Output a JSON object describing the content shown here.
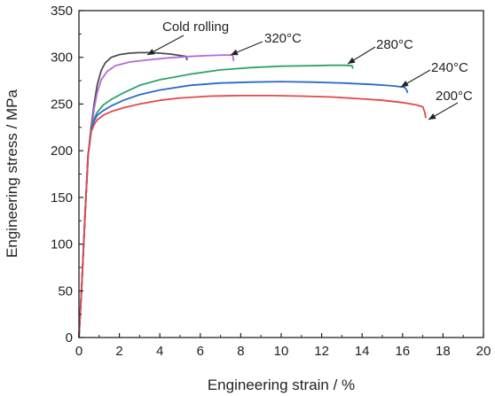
{
  "chart_data": {
    "type": "line",
    "title": "",
    "xlabel": "Engineering strain / %",
    "ylabel": "Engineering stress / MPa",
    "xlim": [
      0,
      20
    ],
    "ylim": [
      0,
      350
    ],
    "xticks": [
      "0",
      "2",
      "4",
      "6",
      "8",
      "10",
      "12",
      "14",
      "16",
      "18",
      "20"
    ],
    "yticks": [
      "0",
      "50",
      "100",
      "150",
      "200",
      "250",
      "300",
      "350"
    ],
    "grid": false,
    "legend": "none",
    "series": [
      {
        "name": "Cold rolling",
        "color": "#4d4d4d",
        "x": [
          0,
          0.15,
          0.3,
          0.45,
          0.6,
          0.75,
          0.9,
          1.1,
          1.3,
          1.6,
          2.0,
          2.5,
          3.0,
          3.5,
          4.0,
          4.5,
          5.0,
          5.3,
          5.35
        ],
        "y": [
          0,
          60,
          130,
          195,
          225,
          250,
          270,
          286,
          294,
          300,
          303,
          304.5,
          305,
          305,
          304.5,
          303.5,
          302,
          301,
          297
        ]
      },
      {
        "name": "320°C",
        "color": "#b36ad9",
        "x": [
          0,
          0.15,
          0.3,
          0.45,
          0.6,
          0.75,
          0.9,
          1.1,
          1.4,
          1.8,
          2.5,
          3.5,
          4.5,
          5.5,
          6.5,
          7.2,
          7.6,
          7.65
        ],
        "y": [
          0,
          60,
          130,
          195,
          220,
          245,
          262,
          276,
          285,
          291,
          295,
          297.5,
          299.5,
          301,
          302,
          302.5,
          302.5,
          296
        ]
      },
      {
        "name": "280°C",
        "color": "#2ea36a",
        "x": [
          0,
          0.15,
          0.3,
          0.45,
          0.6,
          0.75,
          0.9,
          1.2,
          1.6,
          2.2,
          3.0,
          4.0,
          5.5,
          7.0,
          8.5,
          10.0,
          11.5,
          12.5,
          13.2,
          13.5,
          13.55
        ],
        "y": [
          0,
          60,
          130,
          195,
          222,
          234,
          241,
          249,
          255,
          262,
          270,
          276,
          282,
          286.5,
          289,
          290.5,
          291,
          291.5,
          291.5,
          291,
          288
        ]
      },
      {
        "name": "240°C",
        "color": "#2a6ac9",
        "x": [
          0,
          0.15,
          0.3,
          0.45,
          0.6,
          0.75,
          0.9,
          1.2,
          1.6,
          2.2,
          3.0,
          4.0,
          5.5,
          7.0,
          8.5,
          10.0,
          11.5,
          13.0,
          14.5,
          15.5,
          16.1,
          16.2,
          16.25
        ],
        "y": [
          0,
          60,
          130,
          195,
          222,
          232,
          238,
          243,
          248,
          254,
          260,
          265,
          270,
          272.5,
          273.5,
          274,
          273.5,
          272.5,
          271,
          269.5,
          268,
          265,
          262
        ]
      },
      {
        "name": "200°C",
        "color": "#e5474a",
        "x": [
          0,
          0.15,
          0.3,
          0.45,
          0.6,
          0.75,
          0.9,
          1.2,
          1.6,
          2.2,
          3.0,
          4.0,
          5.0,
          6.5,
          8.0,
          9.5,
          11.0,
          12.5,
          14.0,
          15.0,
          16.0,
          16.7,
          17.0,
          17.1,
          17.15
        ],
        "y": [
          0,
          60,
          130,
          195,
          220,
          228,
          233,
          238,
          242,
          246,
          250,
          254,
          256.5,
          258.5,
          259,
          259,
          258.5,
          257.5,
          255.5,
          254,
          251.5,
          249,
          247,
          241,
          235
        ]
      }
    ],
    "annotations": [
      {
        "text": "Cold rolling",
        "series": "Cold rolling"
      },
      {
        "text": "320°C",
        "series": "320°C"
      },
      {
        "text": "280°C",
        "series": "280°C"
      },
      {
        "text": "240°C",
        "series": "240°C"
      },
      {
        "text": "200°C",
        "series": "200°C"
      }
    ]
  }
}
